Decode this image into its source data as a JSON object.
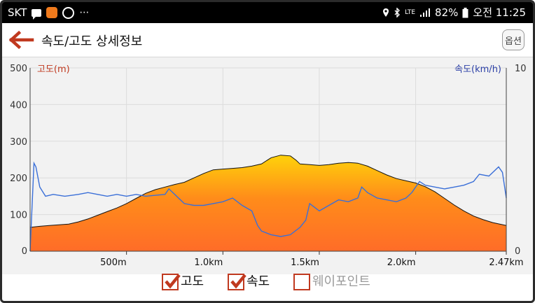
{
  "status_bar": {
    "carrier": "SKT",
    "notification_icons": [
      "message-icon",
      "app-icon",
      "ring-icon"
    ],
    "more": "⋯",
    "right_icons": [
      "location-icon",
      "bluetooth-icon",
      "lte-icon",
      "signal-icon"
    ],
    "lte_label": "LTE",
    "battery_percent": "82%",
    "time": "오전 11:25"
  },
  "header": {
    "title": "속도/고도 상세정보",
    "options_label": "옵션"
  },
  "chart_data": {
    "type": "area",
    "left_axis": {
      "label": "고도(m)",
      "ticks": [
        "0",
        "100",
        "200",
        "300",
        "400",
        "500"
      ],
      "range": [
        0,
        500
      ],
      "color": "#c0391f"
    },
    "right_axis": {
      "label": "속도(km/h)",
      "ticks": [
        "0",
        "10"
      ],
      "range": [
        0,
        10
      ],
      "color": "#2b3fa6"
    },
    "x_axis": {
      "range": [
        0,
        2.47
      ],
      "ticks": [
        {
          "value": 0.5,
          "label": "500m"
        },
        {
          "value": 1.0,
          "label": "1.0km"
        },
        {
          "value": 1.5,
          "label": "1.5km"
        },
        {
          "value": 2.0,
          "label": "2.0km"
        },
        {
          "value": 2.47,
          "label": "2.47km"
        }
      ]
    },
    "grid": true,
    "series": [
      {
        "name": "고도",
        "axis": "left",
        "fill_gradient": [
          "#ffd20a",
          "#ff8c1a",
          "#ff6c28"
        ],
        "stroke": "#111111",
        "points": [
          [
            0.0,
            65
          ],
          [
            0.05,
            68
          ],
          [
            0.1,
            70
          ],
          [
            0.15,
            72
          ],
          [
            0.2,
            74
          ],
          [
            0.25,
            80
          ],
          [
            0.3,
            88
          ],
          [
            0.35,
            98
          ],
          [
            0.4,
            108
          ],
          [
            0.45,
            118
          ],
          [
            0.5,
            130
          ],
          [
            0.55,
            144
          ],
          [
            0.6,
            158
          ],
          [
            0.65,
            168
          ],
          [
            0.7,
            175
          ],
          [
            0.75,
            182
          ],
          [
            0.8,
            188
          ],
          [
            0.85,
            200
          ],
          [
            0.9,
            212
          ],
          [
            0.95,
            222
          ],
          [
            1.0,
            224
          ],
          [
            1.05,
            226
          ],
          [
            1.1,
            228
          ],
          [
            1.15,
            232
          ],
          [
            1.2,
            238
          ],
          [
            1.25,
            255
          ],
          [
            1.3,
            262
          ],
          [
            1.35,
            260
          ],
          [
            1.38,
            248
          ],
          [
            1.4,
            238
          ],
          [
            1.45,
            236
          ],
          [
            1.5,
            234
          ],
          [
            1.55,
            236
          ],
          [
            1.6,
            240
          ],
          [
            1.65,
            242
          ],
          [
            1.7,
            240
          ],
          [
            1.75,
            232
          ],
          [
            1.8,
            220
          ],
          [
            1.85,
            208
          ],
          [
            1.9,
            198
          ],
          [
            1.95,
            192
          ],
          [
            2.0,
            186
          ],
          [
            2.05,
            176
          ],
          [
            2.1,
            162
          ],
          [
            2.15,
            144
          ],
          [
            2.2,
            126
          ],
          [
            2.25,
            110
          ],
          [
            2.3,
            96
          ],
          [
            2.35,
            86
          ],
          [
            2.4,
            78
          ],
          [
            2.47,
            70
          ]
        ]
      },
      {
        "name": "속도",
        "axis": "right",
        "stroke": "#3a6fd8",
        "points": [
          [
            0.0,
            0.0
          ],
          [
            0.02,
            4.8
          ],
          [
            0.03,
            4.6
          ],
          [
            0.05,
            3.5
          ],
          [
            0.08,
            3.0
          ],
          [
            0.12,
            3.1
          ],
          [
            0.18,
            3.0
          ],
          [
            0.25,
            3.1
          ],
          [
            0.3,
            3.2
          ],
          [
            0.35,
            3.1
          ],
          [
            0.4,
            3.0
          ],
          [
            0.45,
            3.1
          ],
          [
            0.5,
            3.0
          ],
          [
            0.55,
            3.1
          ],
          [
            0.6,
            3.0
          ],
          [
            0.65,
            3.05
          ],
          [
            0.7,
            3.1
          ],
          [
            0.72,
            3.4
          ],
          [
            0.75,
            3.1
          ],
          [
            0.8,
            2.6
          ],
          [
            0.85,
            2.5
          ],
          [
            0.9,
            2.5
          ],
          [
            0.95,
            2.6
          ],
          [
            1.0,
            2.7
          ],
          [
            1.05,
            2.9
          ],
          [
            1.1,
            2.5
          ],
          [
            1.15,
            2.2
          ],
          [
            1.18,
            1.4
          ],
          [
            1.2,
            1.1
          ],
          [
            1.25,
            0.9
          ],
          [
            1.3,
            0.8
          ],
          [
            1.35,
            0.9
          ],
          [
            1.4,
            1.3
          ],
          [
            1.43,
            1.7
          ],
          [
            1.45,
            2.6
          ],
          [
            1.5,
            2.2
          ],
          [
            1.55,
            2.5
          ],
          [
            1.6,
            2.8
          ],
          [
            1.65,
            2.7
          ],
          [
            1.7,
            2.9
          ],
          [
            1.72,
            3.5
          ],
          [
            1.75,
            3.2
          ],
          [
            1.8,
            2.9
          ],
          [
            1.85,
            2.8
          ],
          [
            1.9,
            2.7
          ],
          [
            1.95,
            2.9
          ],
          [
            1.98,
            3.2
          ],
          [
            2.02,
            3.8
          ],
          [
            2.05,
            3.6
          ],
          [
            2.1,
            3.5
          ],
          [
            2.15,
            3.4
          ],
          [
            2.2,
            3.5
          ],
          [
            2.25,
            3.6
          ],
          [
            2.3,
            3.8
          ],
          [
            2.33,
            4.2
          ],
          [
            2.38,
            4.1
          ],
          [
            2.43,
            4.6
          ],
          [
            2.45,
            4.3
          ],
          [
            2.47,
            2.9
          ]
        ]
      }
    ]
  },
  "legend": [
    {
      "label": "고도",
      "checked": true
    },
    {
      "label": "속도",
      "checked": true
    },
    {
      "label": "웨이포인트",
      "checked": false
    }
  ],
  "colors": {
    "accent": "#c0391f",
    "speed_line": "#3a6fd8",
    "speed_label": "#2b3fa6",
    "chart_bg": "#f2f2f2"
  }
}
